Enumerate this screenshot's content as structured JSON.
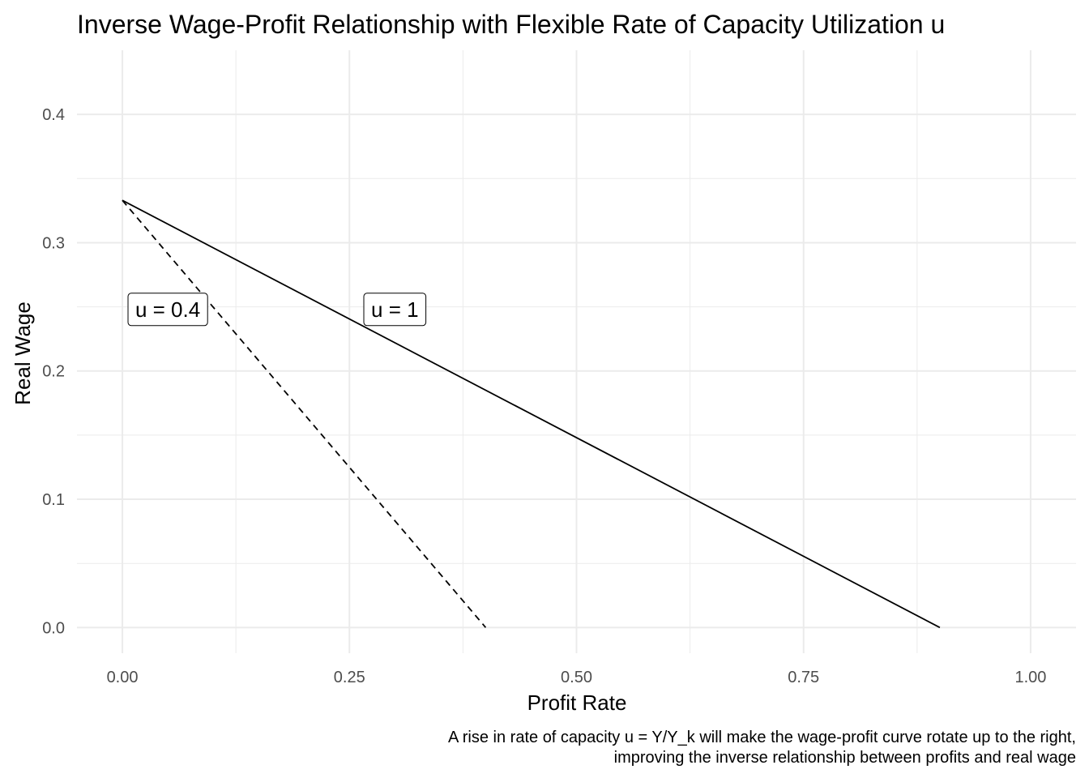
{
  "chart_data": {
    "type": "line",
    "title": "Inverse Wage-Profit Relationship with Flexible Rate of Capacity Utilization u",
    "xlabel": "Profit Rate",
    "ylabel": "Real Wage",
    "caption_lines": [
      "A rise in rate of capacity u = Y/Y_k will make the wage-profit curve rotate up to the right,",
      "improving the inverse relationship between profits and real wage"
    ],
    "xlim": [
      -0.05,
      1.05
    ],
    "ylim": [
      -0.02,
      0.45
    ],
    "x_ticks": [
      0.0,
      0.25,
      0.5,
      0.75,
      1.0
    ],
    "x_tick_labels": [
      "0.00",
      "0.25",
      "0.50",
      "0.75",
      "1.00"
    ],
    "y_ticks": [
      0.0,
      0.1,
      0.2,
      0.3,
      0.4
    ],
    "y_tick_labels": [
      "0.0",
      "0.1",
      "0.2",
      "0.3",
      "0.4"
    ],
    "grid": true,
    "series": [
      {
        "name": "u = 1",
        "linestyle": "solid",
        "color": "#000000",
        "points": [
          [
            0.0,
            0.333
          ],
          [
            0.9,
            0.0
          ]
        ]
      },
      {
        "name": "u = 0.4",
        "linestyle": "dashed",
        "color": "#000000",
        "points": [
          [
            0.0,
            0.333
          ],
          [
            0.4,
            0.0
          ]
        ]
      }
    ],
    "annotations": [
      {
        "text": "u = 0.4",
        "x": 0.05,
        "y": 0.248
      },
      {
        "text": "u = 1",
        "x": 0.3,
        "y": 0.248
      }
    ]
  }
}
